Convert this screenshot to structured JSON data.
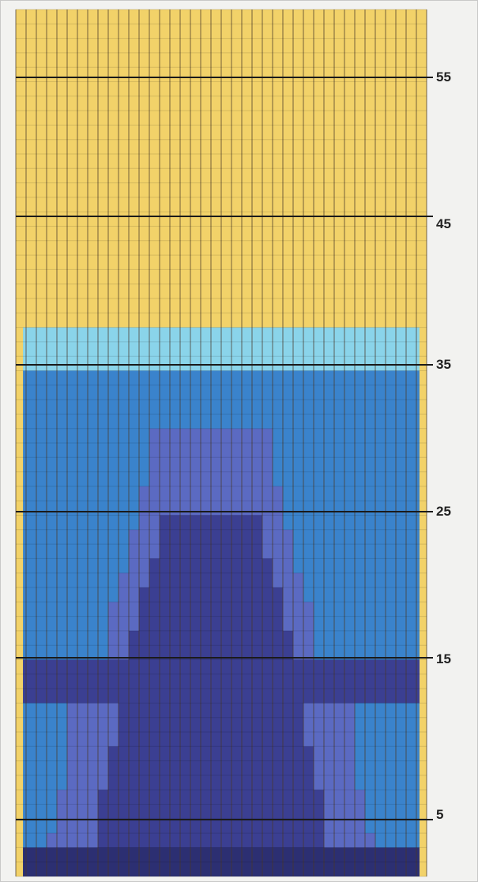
{
  "chart_data": {
    "type": "heatmap",
    "title": "",
    "xlabel": "",
    "ylabel": "",
    "y_tick_labels": [
      "55",
      "45",
      "35",
      "25",
      "15",
      "5"
    ],
    "grid": "on",
    "columns": 40,
    "rows": 60,
    "palette": {
      "background": "#f2d269",
      "light_blue": "#8ad4ea",
      "blue": "#3a83cc",
      "periwinkle": "#5b6ac2",
      "indigo": "#3b3f92",
      "dark_indigo": "#2c2f72",
      "column_line": "#4a3a2a",
      "row_line": "#1a1a1a"
    },
    "regions": [
      {
        "name": "upper band",
        "color": "background",
        "rows_top": 60,
        "rows_bottom": 38
      },
      {
        "name": "upper layer",
        "color": "light_blue",
        "rows_top": 38,
        "rows_bottom": 35
      },
      {
        "name": "middle layer",
        "color": "blue",
        "rows_top": 35,
        "rows_bottom": 0
      },
      {
        "name": "peak",
        "color": "periwinkle",
        "rows_top": 31,
        "rows_bottom": 0
      },
      {
        "name": "core",
        "color": "indigo",
        "rows_top": 25,
        "rows_bottom": 0
      },
      {
        "name": "base",
        "color": "dark_indigo",
        "rows_top": 2,
        "rows_bottom": 0
      }
    ]
  }
}
